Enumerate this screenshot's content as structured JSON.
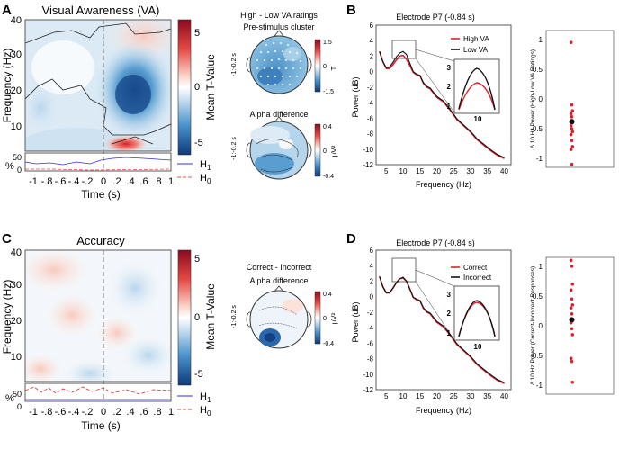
{
  "panels": {
    "A": {
      "letter": "A",
      "title": "Visual Awareness (VA)",
      "ylabel": "Frequency (Hz)",
      "xlabel": "Time (s)",
      "yticks": [
        "40",
        "30",
        "20",
        "10"
      ],
      "xticks": [
        "-1",
        "-.8",
        "-.6",
        "-.4",
        "-.2",
        "0",
        ".2",
        ".4",
        ".6",
        ".8",
        "1"
      ],
      "pct_label": "%",
      "pct_ticks": [
        "50",
        "0"
      ],
      "legend_h1": "H",
      "legend_h0": "H",
      "sub1": "1",
      "sub0": "0",
      "colorbar_label": "Mean T-Value",
      "colorbar_ticks": [
        "5",
        "0",
        "-5"
      ],
      "topo1_title_line1": "High - Low VA ratings",
      "topo1_title_line2": "Pre-stimulus cluster",
      "topo1_side": "-1:-0.2 s",
      "topo1_cb_ticks": [
        "1.5",
        "0",
        "-1.5"
      ],
      "topo1_cb_unit": "T",
      "topo2_title": "Alpha difference",
      "topo2_side": "-1:-0.2 s",
      "topo2_cb_ticks": [
        "0.4",
        "0",
        "-0.4"
      ],
      "topo2_cb_unit": "µV²"
    },
    "B": {
      "letter": "B",
      "title": "Electrode P7 (-0.84 s)",
      "ylabel": "Power (dB)",
      "xlabel": "Frequency (Hz)",
      "yticks": [
        "6",
        "4",
        "2",
        "0",
        "-2",
        "-4",
        "-6",
        "-8",
        "-10",
        "-12"
      ],
      "xticks": [
        "5",
        "10",
        "15",
        "20",
        "25",
        "30",
        "35",
        "40"
      ],
      "legend": [
        {
          "label": "High VA",
          "color": "#e0202a"
        },
        {
          "label": "Low VA",
          "color": "#111111"
        }
      ],
      "inset_yticks": [
        "3",
        "2",
        "1"
      ],
      "inset_xtick": "10",
      "scatter_ylabel": "Δ 10 Hz Power (High-Low VA Ratings)",
      "scatter_yticks": [
        "1",
        "0.5",
        "0",
        "-0.5",
        "-1"
      ]
    },
    "C": {
      "letter": "C",
      "title": "Accuracy",
      "ylabel": "Frequency (Hz)",
      "xlabel": "Time (s)",
      "yticks": [
        "40",
        "30",
        "20",
        "10"
      ],
      "xticks": [
        "-1",
        "-.8",
        "-.6",
        "-.4",
        "-.2",
        "0",
        ".2",
        ".4",
        ".6",
        ".8",
        "1"
      ],
      "pct_label": "%",
      "pct_ticks": [
        "50",
        "0"
      ],
      "legend_h1": "H",
      "legend_h0": "H",
      "sub1": "1",
      "sub0": "0",
      "colorbar_label": "Mean T-Value",
      "colorbar_ticks": [
        "5",
        "0",
        "-5"
      ],
      "topo_title_line1": "Correct - Incorrect",
      "topo_title_line2": "Alpha difference",
      "topo_side": "-1:-0.2 s",
      "topo_cb_ticks": [
        "0.4",
        "0",
        "-0.4"
      ],
      "topo_cb_unit": "µV²"
    },
    "D": {
      "letter": "D",
      "title": "Electrode P7 (-0.84 s)",
      "ylabel": "Power (dB)",
      "xlabel": "Frequency (Hz)",
      "yticks": [
        "6",
        "4",
        "2",
        "0",
        "-2",
        "-4",
        "-6",
        "-8",
        "-10",
        "-12"
      ],
      "xticks": [
        "5",
        "10",
        "15",
        "20",
        "25",
        "30",
        "35",
        "40"
      ],
      "legend": [
        {
          "label": "Correct",
          "color": "#e0202a"
        },
        {
          "label": "Incorrect",
          "color": "#111111"
        }
      ],
      "inset_yticks": [
        "3",
        "2",
        "1"
      ],
      "inset_xtick": "10",
      "scatter_ylabel": "Δ 10 Hz Power (Correct-Incorrect Responses)",
      "scatter_yticks": [
        "1",
        "0.5",
        "0",
        "-0.5",
        "-1"
      ]
    }
  },
  "chart_data": [
    {
      "type": "line",
      "panel": "B",
      "title": "Electrode P7 (-0.84 s)",
      "xlabel": "Frequency (Hz)",
      "ylabel": "Power (dB)",
      "xlim": [
        2,
        42
      ],
      "ylim": [
        -12,
        6
      ],
      "x": [
        3,
        4,
        5,
        6,
        7,
        8,
        9,
        10,
        11,
        12,
        13,
        14,
        15,
        16,
        17,
        18,
        20,
        22,
        24,
        26,
        28,
        30,
        32,
        34,
        36,
        38,
        40
      ],
      "series": [
        {
          "name": "High VA",
          "color": "#e0202a",
          "values": [
            2.6,
            1.3,
            0.4,
            0.4,
            0.9,
            1.5,
            2.0,
            2.1,
            1.6,
            0.8,
            -0.1,
            -0.4,
            -0.5,
            -1.5,
            -2.0,
            -2.2,
            -3.3,
            -3.9,
            -5.0,
            -6.2,
            -7.0,
            -7.8,
            -8.8,
            -9.5,
            -10.2,
            -10.8,
            -11.2
          ]
        },
        {
          "name": "Low VA",
          "color": "#111111",
          "values": [
            2.6,
            1.3,
            0.5,
            0.6,
            1.2,
            1.9,
            2.4,
            2.6,
            2.2,
            1.1,
            0.0,
            -0.3,
            -0.5,
            -1.4,
            -1.9,
            -2.1,
            -3.2,
            -3.8,
            -4.9,
            -6.1,
            -6.9,
            -7.7,
            -8.7,
            -9.4,
            -10.1,
            -10.7,
            -11.1
          ]
        }
      ]
    },
    {
      "type": "scatter",
      "panel": "B-scatter",
      "ylabel": "Δ 10 Hz Power (High-Low VA Ratings)",
      "ylim": [
        -1.15,
        1.15
      ],
      "values": [
        0.95,
        -0.1,
        -0.2,
        -0.25,
        -0.3,
        -0.4,
        -0.45,
        -0.5,
        -0.55,
        -0.6,
        -0.7,
        -0.8,
        -0.85,
        -1.1
      ],
      "mean": -0.38
    },
    {
      "type": "line",
      "panel": "D",
      "title": "Electrode P7 (-0.84 s)",
      "xlabel": "Frequency (Hz)",
      "ylabel": "Power (dB)",
      "xlim": [
        2,
        42
      ],
      "ylim": [
        -12,
        6
      ],
      "x": [
        3,
        4,
        5,
        6,
        7,
        8,
        9,
        10,
        11,
        12,
        13,
        14,
        15,
        16,
        17,
        18,
        20,
        22,
        24,
        26,
        28,
        30,
        32,
        34,
        36,
        38,
        40
      ],
      "series": [
        {
          "name": "Correct",
          "color": "#e0202a",
          "values": [
            2.6,
            1.3,
            0.5,
            0.5,
            1.1,
            1.8,
            2.3,
            2.4,
            2.0,
            1.0,
            -0.1,
            -0.4,
            -0.5,
            -1.5,
            -2.0,
            -2.2,
            -3.3,
            -3.9,
            -5.0,
            -6.2,
            -7.0,
            -7.8,
            -8.8,
            -9.5,
            -10.2,
            -10.8,
            -11.2
          ]
        },
        {
          "name": "Incorrect",
          "color": "#111111",
          "values": [
            2.6,
            1.3,
            0.5,
            0.5,
            1.1,
            1.8,
            2.3,
            2.5,
            2.0,
            1.0,
            -0.1,
            -0.3,
            -0.5,
            -1.4,
            -1.9,
            -2.1,
            -3.2,
            -3.8,
            -4.9,
            -6.1,
            -6.9,
            -7.7,
            -8.7,
            -9.4,
            -10.1,
            -10.7,
            -11.1
          ]
        }
      ]
    },
    {
      "type": "scatter",
      "panel": "D-scatter",
      "ylabel": "Δ 10 Hz Power (Correct-Incorrect Responses)",
      "ylim": [
        -1.15,
        1.15
      ],
      "values": [
        1.1,
        1.0,
        0.7,
        0.6,
        0.45,
        0.35,
        0.3,
        0.2,
        0.1,
        0.05,
        -0.05,
        -0.15,
        -0.55,
        -0.6,
        -0.95
      ],
      "mean": 0.1
    }
  ]
}
